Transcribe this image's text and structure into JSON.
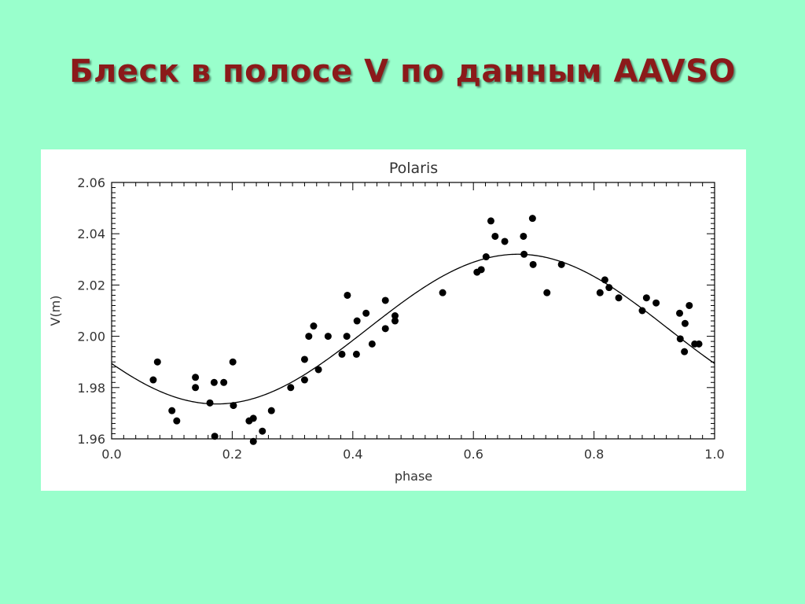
{
  "slide": {
    "title": "Блеск в полосе V по данным AAVSO",
    "background_color": "#99ffcc",
    "title_color": "#8b1a1a"
  },
  "chart_data": {
    "type": "scatter",
    "title": "Polaris",
    "xlabel": "phase",
    "ylabel": "V(m)",
    "xlim": [
      0.0,
      1.0
    ],
    "ylim": [
      1.96,
      2.06
    ],
    "y_reversed": false,
    "xticks": [
      "0.0",
      "0.2",
      "0.4",
      "0.6",
      "0.8",
      "1.0"
    ],
    "yticks": [
      "2.06",
      "2.04",
      "2.02",
      "2.00",
      "1.98",
      "1.96"
    ],
    "grid": false,
    "legend": "none",
    "series": [
      {
        "kind": "points",
        "color": "#000000",
        "points": [
          [
            0.069,
            1.983
          ],
          [
            0.076,
            1.99
          ],
          [
            0.1,
            1.971
          ],
          [
            0.108,
            1.967
          ],
          [
            0.139,
            1.984
          ],
          [
            0.139,
            1.98
          ],
          [
            0.163,
            1.974
          ],
          [
            0.17,
            1.982
          ],
          [
            0.171,
            1.961
          ],
          [
            0.186,
            1.982
          ],
          [
            0.201,
            1.99
          ],
          [
            0.202,
            1.973
          ],
          [
            0.228,
            1.967
          ],
          [
            0.235,
            1.968
          ],
          [
            0.235,
            1.959
          ],
          [
            0.25,
            1.963
          ],
          [
            0.265,
            1.971
          ],
          [
            0.297,
            1.98
          ],
          [
            0.32,
            1.983
          ],
          [
            0.32,
            1.991
          ],
          [
            0.327,
            2.0
          ],
          [
            0.335,
            2.004
          ],
          [
            0.343,
            1.987
          ],
          [
            0.359,
            2.0
          ],
          [
            0.382,
            1.993
          ],
          [
            0.39,
            2.0
          ],
          [
            0.391,
            2.016
          ],
          [
            0.406,
            1.993
          ],
          [
            0.407,
            2.006
          ],
          [
            0.422,
            2.009
          ],
          [
            0.432,
            1.997
          ],
          [
            0.454,
            2.003
          ],
          [
            0.454,
            2.014
          ],
          [
            0.47,
            2.006
          ],
          [
            0.47,
            2.008
          ],
          [
            0.549,
            2.017
          ],
          [
            0.606,
            2.025
          ],
          [
            0.613,
            2.026
          ],
          [
            0.621,
            2.031
          ],
          [
            0.629,
            2.045
          ],
          [
            0.636,
            2.039
          ],
          [
            0.652,
            2.037
          ],
          [
            0.683,
            2.039
          ],
          [
            0.684,
            2.032
          ],
          [
            0.698,
            2.046
          ],
          [
            0.699,
            2.028
          ],
          [
            0.722,
            2.017
          ],
          [
            0.746,
            2.028
          ],
          [
            0.81,
            2.017
          ],
          [
            0.818,
            2.022
          ],
          [
            0.825,
            2.019
          ],
          [
            0.841,
            2.015
          ],
          [
            0.88,
            2.01
          ],
          [
            0.887,
            2.015
          ],
          [
            0.903,
            2.013
          ],
          [
            0.942,
            2.009
          ],
          [
            0.943,
            1.999
          ],
          [
            0.95,
            1.994
          ],
          [
            0.951,
            2.005
          ],
          [
            0.958,
            2.012
          ],
          [
            0.967,
            1.997
          ],
          [
            0.974,
            1.997
          ]
        ]
      },
      {
        "kind": "fit-curve",
        "color": "#000000",
        "mean": 2.0028,
        "amplitude": 0.0292,
        "phase_offset": 0.174
      }
    ]
  }
}
